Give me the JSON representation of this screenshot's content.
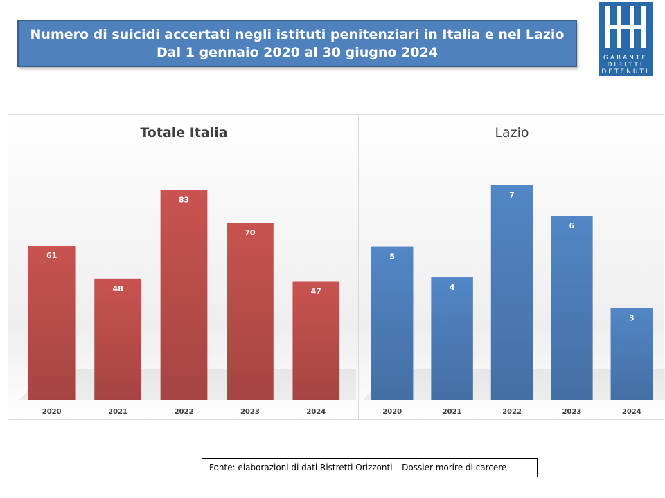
{
  "header": {
    "title_line1": "Numero di suicidi accertati negli istituti penitenziari in Italia e nel Lazio",
    "title_line2": "Dal 1 gennaio 2020 al 30 giugno 2024"
  },
  "logo": {
    "line1": "GARANTE",
    "line2": "DIRITTI",
    "line3": "DETENUTI",
    "color": "#2a6aa8"
  },
  "chart_data": [
    {
      "type": "bar",
      "title": "Totale Italia",
      "categories": [
        "2020",
        "2021",
        "2022",
        "2023",
        "2024"
      ],
      "values": [
        61,
        48,
        83,
        70,
        47
      ],
      "color": "#c0504d",
      "grid": false,
      "legend": "none"
    },
    {
      "type": "bar",
      "title": "Lazio",
      "categories": [
        "2020",
        "2021",
        "2022",
        "2023",
        "2024"
      ],
      "values": [
        5,
        4,
        7,
        6,
        3
      ],
      "color": "#4f81bd",
      "grid": false,
      "legend": "none"
    }
  ],
  "source": {
    "text": "Fonte: elaborazioni di dati Ristretti Orizzonti – Dossier morire di carcere"
  }
}
